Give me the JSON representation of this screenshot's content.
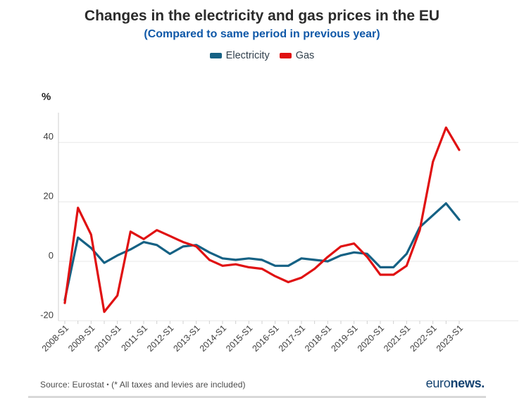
{
  "header": {
    "title": "Changes in the electricity and gas prices in the EU",
    "subtitle": "(Compared to same period in previous year)"
  },
  "legend": [
    {
      "label": "Electricity",
      "color": "#156184"
    },
    {
      "label": "Gas",
      "color": "#e01112"
    }
  ],
  "chart_data": {
    "type": "line",
    "unit_label": "%",
    "x": [
      "2008-S1",
      "2008-S2",
      "2009-S1",
      "2009-S2",
      "2010-S1",
      "2010-S2",
      "2011-S1",
      "2011-S2",
      "2012-S1",
      "2012-S2",
      "2013-S1",
      "2013-S2",
      "2014-S1",
      "2014-S2",
      "2015-S1",
      "2015-S2",
      "2016-S1",
      "2016-S2",
      "2017-S1",
      "2017-S2",
      "2018-S1",
      "2018-S2",
      "2019-S1",
      "2019-S2",
      "2020-S1",
      "2020-S2",
      "2021-S1",
      "2021-S2",
      "2022-S1",
      "2022-S2",
      "2023-S1"
    ],
    "x_tick_labels": [
      "2008-S1",
      "2009-S1",
      "2010-S1",
      "2011-S1",
      "2012-S1",
      "2013-S1",
      "2014-S1",
      "2015-S1",
      "2016-S1",
      "2017-S1",
      "2018-S1",
      "2019-S1",
      "2020-S1",
      "2021-S1",
      "2022-S1",
      "2023-S1"
    ],
    "series": [
      {
        "name": "Electricity",
        "color": "#156184",
        "values": [
          -13,
          8,
          4.5,
          -0.5,
          2,
          4,
          6.5,
          5.5,
          2.5,
          5,
          5.5,
          3,
          1,
          0.5,
          1,
          0.5,
          -1.5,
          -1.5,
          1,
          0.5,
          0,
          2,
          3,
          2.5,
          -2,
          -2,
          2.5,
          11.5,
          15.5,
          19.5,
          14
        ]
      },
      {
        "name": "Gas",
        "color": "#e01112",
        "values": [
          -14,
          18,
          9,
          -17,
          -11.5,
          10,
          7.5,
          10.5,
          8.5,
          6.5,
          5,
          0.5,
          -1.5,
          -1,
          -2,
          -2.5,
          -5,
          -7,
          -5.5,
          -2.5,
          1.5,
          5,
          6,
          1.5,
          -4.5,
          -4.5,
          -1.5,
          10.5,
          33.5,
          45,
          37.5
        ]
      }
    ],
    "yticks": [
      40,
      20,
      0,
      -20
    ],
    "ylim": [
      -20,
      48
    ],
    "grid": "horizontal",
    "legend_position": "top"
  },
  "footer": {
    "source_label": "Source: Eurostat",
    "separator": "•",
    "note": "(* All taxes and levies are included)",
    "brand_euro": "euro",
    "brand_news": "news."
  },
  "colors": {
    "electricity_line": "#156184",
    "gas_line": "#e01112",
    "subtitle_blue": "#0f58a8",
    "title_text": "#2b2b2b",
    "brand_navy": "#134270",
    "gridline": "#e8e8e8",
    "axis": "#cfcfcf",
    "tick_text": "#3c3c3c"
  }
}
